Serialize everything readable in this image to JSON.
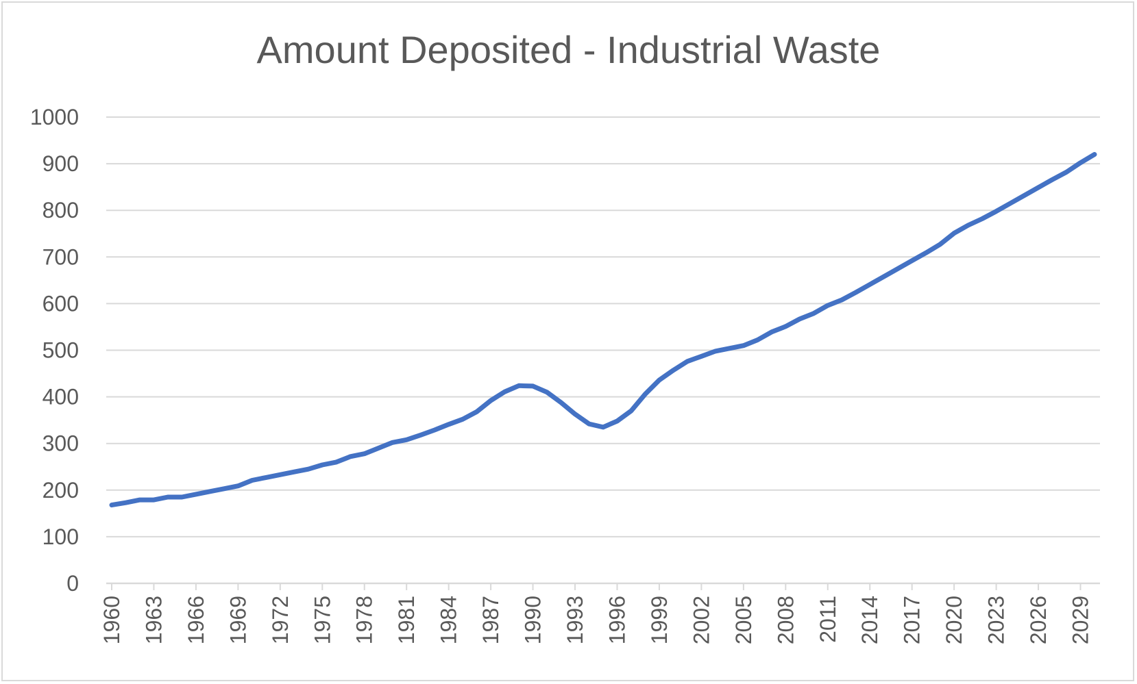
{
  "chart_data": {
    "type": "line",
    "title": "Amount Deposited - Industrial Waste",
    "xlabel": "",
    "ylabel": "",
    "ylim": [
      0,
      1000
    ],
    "yticks": [
      0,
      100,
      200,
      300,
      400,
      500,
      600,
      700,
      800,
      900,
      1000
    ],
    "xlim": [
      1960,
      2030
    ],
    "xtick_labels": [
      "1960",
      "1963",
      "1966",
      "1969",
      "1972",
      "1975",
      "1978",
      "1981",
      "1984",
      "1987",
      "1990",
      "1993",
      "1996",
      "1999",
      "2002",
      "2005",
      "2008",
      "2011",
      "2014",
      "2017",
      "2020",
      "2023",
      "2026",
      "2029"
    ],
    "grid": true,
    "legend": "none",
    "line_color": "#4472c4",
    "grid_color": "#d9d9d9",
    "x": [
      1960,
      1961,
      1962,
      1963,
      1964,
      1965,
      1966,
      1967,
      1968,
      1969,
      1970,
      1971,
      1972,
      1973,
      1974,
      1975,
      1976,
      1977,
      1978,
      1979,
      1980,
      1981,
      1982,
      1983,
      1984,
      1985,
      1986,
      1987,
      1988,
      1989,
      1990,
      1991,
      1992,
      1993,
      1994,
      1995,
      1996,
      1997,
      1998,
      1999,
      2000,
      2001,
      2002,
      2003,
      2004,
      2005,
      2006,
      2007,
      2008,
      2009,
      2010,
      2011,
      2012,
      2013,
      2014,
      2015,
      2016,
      2017,
      2018,
      2019,
      2020,
      2021,
      2022,
      2023,
      2024,
      2025,
      2026,
      2027,
      2028,
      2029,
      2030
    ],
    "series": [
      {
        "name": "",
        "values": [
          168,
          173,
          179,
          179,
          185,
          185,
          191,
          197,
          203,
          209,
          221,
          227,
          233,
          239,
          245,
          254,
          260,
          272,
          278,
          290,
          302,
          308,
          318,
          329,
          341,
          352,
          368,
          392,
          411,
          424,
          423,
          410,
          388,
          363,
          342,
          335,
          348,
          370,
          406,
          436,
          457,
          476,
          487,
          498,
          504,
          510,
          522,
          539,
          551,
          567,
          579,
          596,
          608,
          624,
          641,
          658,
          675,
          692,
          709,
          727,
          751,
          768,
          782,
          798,
          815,
          832,
          849,
          866,
          882,
          902,
          920
        ]
      }
    ]
  }
}
